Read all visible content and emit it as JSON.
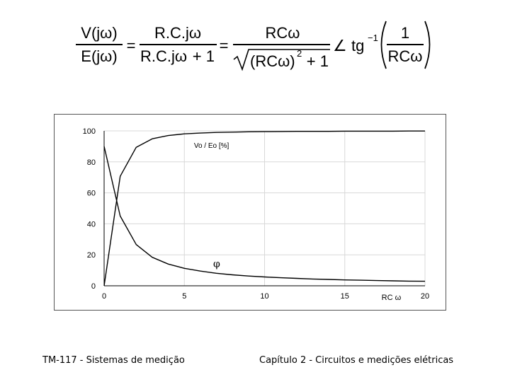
{
  "formula": {
    "lhs_num": "V(jω)",
    "lhs_den": "E(jω)",
    "frac1_num": "R.C.jω",
    "frac1_den_a": "R.C.jω",
    "frac1_den_b": "+ 1",
    "eq1": "=",
    "eq2": "=",
    "frac2_num": "RCω",
    "frac2_den_a": "(RCω)",
    "frac2_den_exp": "2",
    "frac2_den_b": "+ 1",
    "angle": "∠",
    "tg": "tg",
    "tg_exp": "−1",
    "frac3_num": "1",
    "frac3_den": "RCω"
  },
  "chart_data": {
    "type": "line",
    "x_ticks": [
      "0",
      "5",
      "10",
      "15",
      "20"
    ],
    "y_ticks": [
      "0",
      "20",
      "40",
      "60",
      "80",
      "100"
    ],
    "xlim": [
      0,
      20
    ],
    "ylim": [
      0,
      100
    ],
    "xlabel": "RC ω",
    "grid": true,
    "series": [
      {
        "name": "Vo / Eo [%]",
        "x": [
          0,
          1,
          2,
          3,
          4,
          5,
          6,
          7,
          8,
          9,
          10,
          11,
          12,
          13,
          14,
          15,
          16,
          17,
          18,
          19,
          20
        ],
        "y": [
          0,
          70.7,
          89.4,
          94.9,
          97.0,
          98.1,
          98.6,
          99.0,
          99.2,
          99.4,
          99.5,
          99.6,
          99.7,
          99.7,
          99.7,
          99.8,
          99.8,
          99.8,
          99.8,
          99.9,
          99.9
        ]
      },
      {
        "name": "φ",
        "x": [
          0,
          1,
          2,
          3,
          4,
          5,
          6,
          7,
          8,
          9,
          10,
          11,
          12,
          13,
          14,
          15,
          16,
          17,
          18,
          19,
          20
        ],
        "y": [
          90,
          45,
          26.6,
          18.4,
          14.0,
          11.3,
          9.5,
          8.1,
          7.1,
          6.3,
          5.7,
          5.2,
          4.8,
          4.4,
          4.1,
          3.8,
          3.6,
          3.4,
          3.2,
          3.0,
          2.9
        ]
      }
    ]
  },
  "footer": {
    "left": "TM-117 - Sistemas de medição",
    "right": "Capítulo 2 - Circuitos e medições elétricas"
  },
  "colors": {
    "line": "#000000",
    "grid": "#d8d8d8",
    "frame": "#555555"
  }
}
